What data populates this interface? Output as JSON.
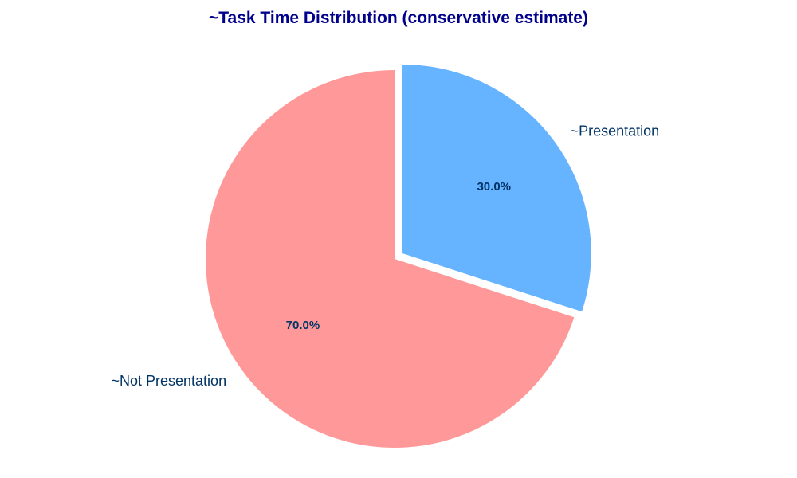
{
  "chart_data": {
    "type": "pie",
    "title": "~Task Time Distribution (conservative estimate)",
    "start_angle_deg": 90,
    "direction": "counterclockwise",
    "slices": [
      {
        "label": "~Not Presentation",
        "value": 70.0,
        "pct_label": "70.0%",
        "color": "#ff9999",
        "exploded": false
      },
      {
        "label": "~Presentation",
        "value": 30.0,
        "pct_label": "30.0%",
        "color": "#66b3ff",
        "exploded": true
      }
    ]
  },
  "colors": {
    "title": "#00008b",
    "label_text": "#003366",
    "pct_text": "#003366",
    "background": "#ffffff",
    "slice_edge": "#ffffff"
  }
}
